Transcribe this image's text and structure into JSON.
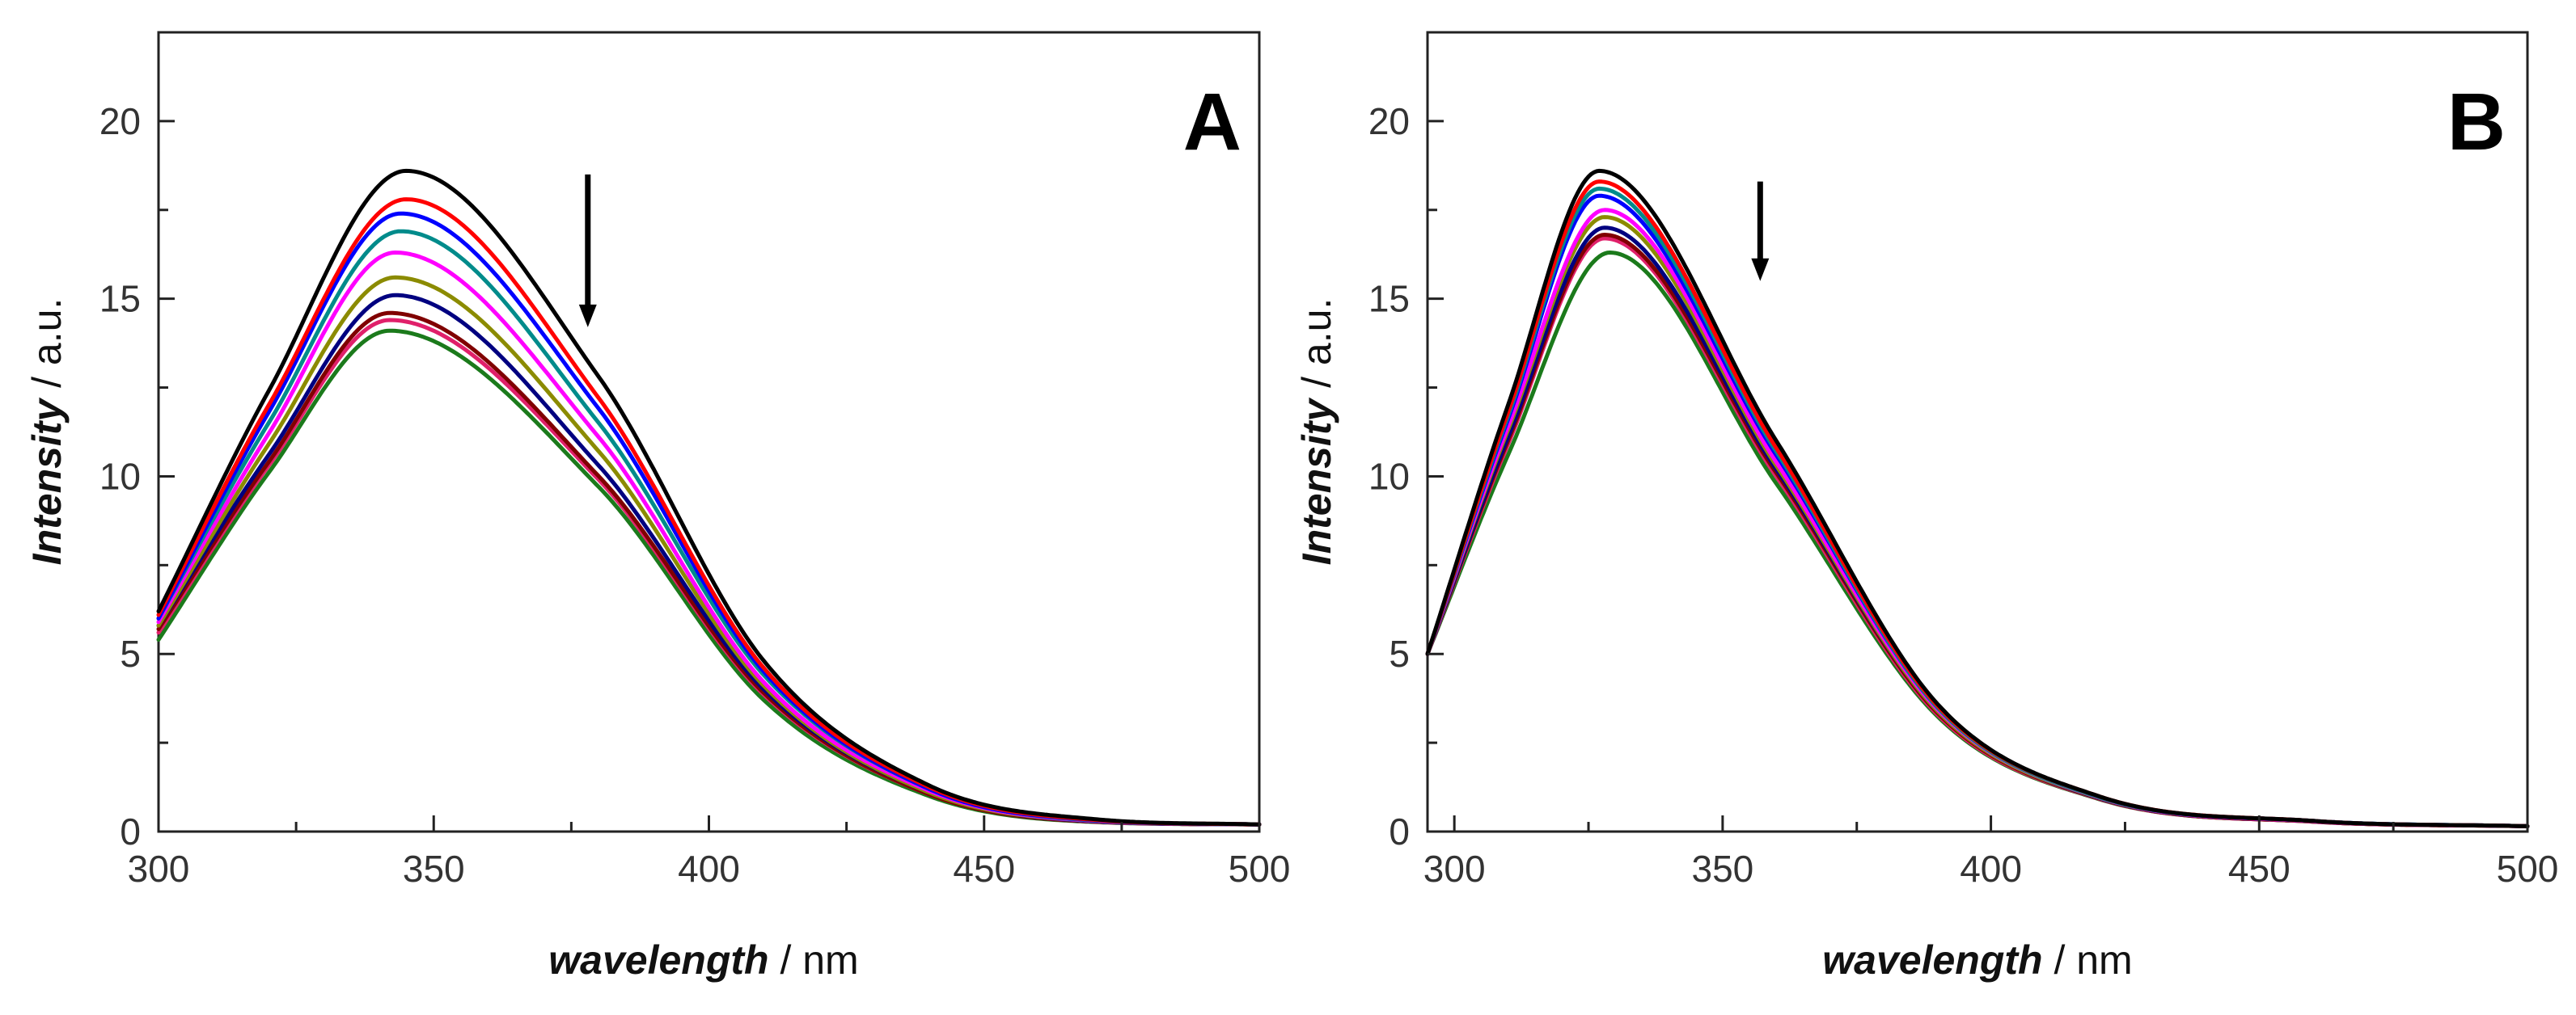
{
  "chart_data": [
    {
      "type": "line",
      "panel": "A",
      "xlabel": {
        "italic": "wavelength",
        "unit": " / nm"
      },
      "ylabel": {
        "italic": "Intensity",
        "unit": " / a.u."
      },
      "xlim": [
        300,
        500
      ],
      "ylim": [
        0,
        22.5
      ],
      "xticks": [
        300,
        350,
        400,
        450,
        500
      ],
      "yticks": [
        0,
        5,
        10,
        15,
        20
      ],
      "arrow": {
        "x": 378,
        "y_from": 18.5,
        "y_to": 14.2,
        "direction": "down"
      },
      "series": [
        {
          "name": "s1",
          "color": "#000000",
          "peak_x": 345,
          "peak_y": 18.6,
          "x": [
            300,
            320,
            345,
            380,
            410,
            440,
            470,
            500
          ],
          "values": [
            6.2,
            12.4,
            18.6,
            12.8,
            4.8,
            1.3,
            0.35,
            0.2
          ]
        },
        {
          "name": "s2",
          "color": "#ff0000",
          "peak_x": 345,
          "peak_y": 17.8,
          "x": [
            300,
            320,
            345,
            380,
            410,
            440,
            470,
            500
          ],
          "values": [
            6.1,
            12.0,
            17.8,
            12.2,
            4.6,
            1.25,
            0.33,
            0.2
          ]
        },
        {
          "name": "s3",
          "color": "#0000ff",
          "peak_x": 344,
          "peak_y": 17.4,
          "x": [
            300,
            320,
            344,
            380,
            410,
            440,
            470,
            500
          ],
          "values": [
            6.0,
            11.8,
            17.4,
            11.9,
            4.5,
            1.2,
            0.32,
            0.2
          ]
        },
        {
          "name": "s4",
          "color": "#008b8b",
          "peak_x": 344,
          "peak_y": 16.9,
          "x": [
            300,
            320,
            344,
            380,
            410,
            440,
            470,
            500
          ],
          "values": [
            6.0,
            11.5,
            16.9,
            11.5,
            4.4,
            1.2,
            0.31,
            0.2
          ]
        },
        {
          "name": "s5",
          "color": "#ff00ff",
          "peak_x": 343,
          "peak_y": 16.3,
          "x": [
            300,
            320,
            343,
            380,
            410,
            440,
            470,
            500
          ],
          "values": [
            5.9,
            11.2,
            16.3,
            11.1,
            4.2,
            1.15,
            0.3,
            0.2
          ]
        },
        {
          "name": "s6",
          "color": "#8b8b00",
          "peak_x": 343,
          "peak_y": 15.6,
          "x": [
            300,
            320,
            343,
            380,
            410,
            440,
            470,
            500
          ],
          "values": [
            5.8,
            10.9,
            15.6,
            10.7,
            4.1,
            1.1,
            0.3,
            0.2
          ]
        },
        {
          "name": "s7",
          "color": "#000080",
          "peak_x": 343,
          "peak_y": 15.1,
          "x": [
            300,
            320,
            343,
            380,
            410,
            440,
            470,
            500
          ],
          "values": [
            5.8,
            10.6,
            15.1,
            10.3,
            4.0,
            1.1,
            0.29,
            0.2
          ]
        },
        {
          "name": "s8",
          "color": "#800000",
          "peak_x": 342,
          "peak_y": 14.6,
          "x": [
            300,
            320,
            342,
            380,
            410,
            440,
            470,
            500
          ],
          "values": [
            5.7,
            10.4,
            14.6,
            10.0,
            3.9,
            1.05,
            0.28,
            0.2
          ]
        },
        {
          "name": "s9",
          "color": "#e0206a",
          "peak_x": 342,
          "peak_y": 14.4,
          "x": [
            300,
            320,
            342,
            380,
            410,
            440,
            470,
            500
          ],
          "values": [
            5.6,
            10.3,
            14.4,
            9.9,
            3.85,
            1.05,
            0.28,
            0.2
          ]
        },
        {
          "name": "s10",
          "color": "#1b7a1b",
          "peak_x": 342,
          "peak_y": 14.1,
          "x": [
            300,
            320,
            342,
            380,
            410,
            440,
            470,
            500
          ],
          "values": [
            5.4,
            10.1,
            14.1,
            9.7,
            3.7,
            1.0,
            0.27,
            0.2
          ]
        }
      ]
    },
    {
      "type": "line",
      "panel": "B",
      "xlabel": {
        "italic": "wavelength",
        "unit": " / nm"
      },
      "ylabel": {
        "italic": "Intensity",
        "unit": " / a.u."
      },
      "xlim": [
        295,
        500
      ],
      "ylim": [
        0,
        22.5
      ],
      "xticks": [
        300,
        350,
        400,
        450,
        500
      ],
      "yticks": [
        0,
        5,
        10,
        15,
        20
      ],
      "arrow": {
        "x": 357,
        "y_from": 18.3,
        "y_to": 15.5,
        "direction": "down"
      },
      "series": [
        {
          "name": "s1",
          "color": "#000000",
          "peak_x": 327,
          "peak_y": 18.6,
          "x": [
            295,
            310,
            327,
            360,
            390,
            420,
            460,
            500
          ],
          "values": [
            5.0,
            12.0,
            18.6,
            11.0,
            3.6,
            1.0,
            0.3,
            0.15
          ]
        },
        {
          "name": "s2",
          "color": "#ff0000",
          "peak_x": 327,
          "peak_y": 18.3,
          "x": [
            295,
            310,
            327,
            360,
            390,
            420,
            460,
            500
          ],
          "values": [
            5.0,
            11.8,
            18.3,
            10.8,
            3.55,
            1.0,
            0.3,
            0.15
          ]
        },
        {
          "name": "s3",
          "color": "#008b8b",
          "peak_x": 327,
          "peak_y": 18.1,
          "x": [
            295,
            310,
            327,
            360,
            390,
            420,
            460,
            500
          ],
          "values": [
            5.0,
            11.7,
            18.1,
            10.7,
            3.5,
            0.98,
            0.3,
            0.15
          ]
        },
        {
          "name": "s4",
          "color": "#0000ff",
          "peak_x": 327,
          "peak_y": 17.9,
          "x": [
            295,
            310,
            327,
            360,
            390,
            420,
            460,
            500
          ],
          "values": [
            5.0,
            11.6,
            17.9,
            10.6,
            3.5,
            0.98,
            0.3,
            0.15
          ]
        },
        {
          "name": "s5",
          "color": "#ff00ff",
          "peak_x": 328,
          "peak_y": 17.5,
          "x": [
            295,
            310,
            328,
            360,
            390,
            420,
            460,
            500
          ],
          "values": [
            5.0,
            11.4,
            17.5,
            10.4,
            3.45,
            0.97,
            0.29,
            0.15
          ]
        },
        {
          "name": "s6",
          "color": "#8b8b00",
          "peak_x": 328,
          "peak_y": 17.3,
          "x": [
            295,
            310,
            328,
            360,
            390,
            420,
            460,
            500
          ],
          "values": [
            5.0,
            11.3,
            17.3,
            10.3,
            3.4,
            0.96,
            0.29,
            0.15
          ]
        },
        {
          "name": "s7",
          "color": "#000080",
          "peak_x": 328,
          "peak_y": 17.0,
          "x": [
            295,
            310,
            328,
            360,
            390,
            420,
            460,
            500
          ],
          "values": [
            5.0,
            11.1,
            17.0,
            10.2,
            3.4,
            0.95,
            0.29,
            0.15
          ]
        },
        {
          "name": "s8",
          "color": "#800000",
          "peak_x": 328,
          "peak_y": 16.8,
          "x": [
            295,
            310,
            328,
            360,
            390,
            420,
            460,
            500
          ],
          "values": [
            5.0,
            11.0,
            16.8,
            10.1,
            3.35,
            0.94,
            0.28,
            0.15
          ]
        },
        {
          "name": "s9",
          "color": "#e0206a",
          "peak_x": 328,
          "peak_y": 16.7,
          "x": [
            295,
            310,
            328,
            360,
            390,
            420,
            460,
            500
          ],
          "values": [
            5.0,
            10.9,
            16.7,
            10.0,
            3.3,
            0.93,
            0.28,
            0.15
          ]
        },
        {
          "name": "s10",
          "color": "#1b7a1b",
          "peak_x": 329,
          "peak_y": 16.3,
          "x": [
            295,
            310,
            329,
            360,
            390,
            420,
            460,
            500
          ],
          "values": [
            5.0,
            10.6,
            16.3,
            9.8,
            3.25,
            0.92,
            0.28,
            0.15
          ]
        }
      ]
    }
  ]
}
